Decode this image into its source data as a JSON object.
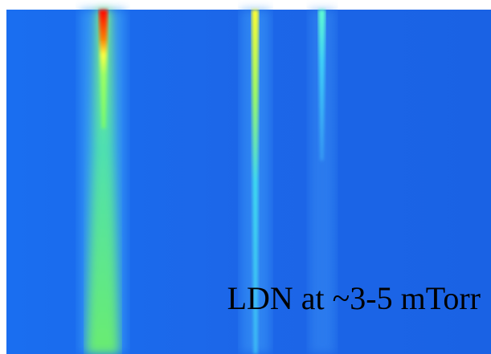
{
  "annotation": "LDN at ~3-5 mTorr"
}
